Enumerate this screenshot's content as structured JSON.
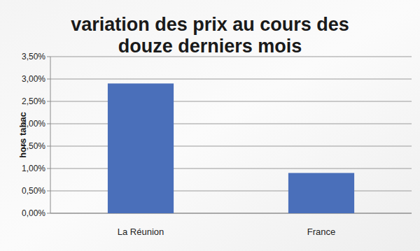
{
  "chart_data": {
    "type": "bar",
    "title": "variation des prix au cours des douze derniers mois",
    "y_label": "hors tabac",
    "categories": [
      "La Réunion",
      "France"
    ],
    "values": [
      2.9,
      0.9
    ],
    "color": "#4a6fba",
    "ylim": [
      0,
      3.5
    ],
    "yticks": [
      {
        "value": 0,
        "label": "0,00%"
      },
      {
        "value": 0.5,
        "label": "0,50%"
      },
      {
        "value": 1,
        "label": "1,00%"
      },
      {
        "value": 1.5,
        "label": "1,50%"
      },
      {
        "value": 2,
        "label": "2,00%"
      },
      {
        "value": 2.5,
        "label": "2,50%"
      },
      {
        "value": 3,
        "label": "3,00%"
      },
      {
        "value": 3.5,
        "label": "3,50%"
      }
    ],
    "grid": true
  }
}
